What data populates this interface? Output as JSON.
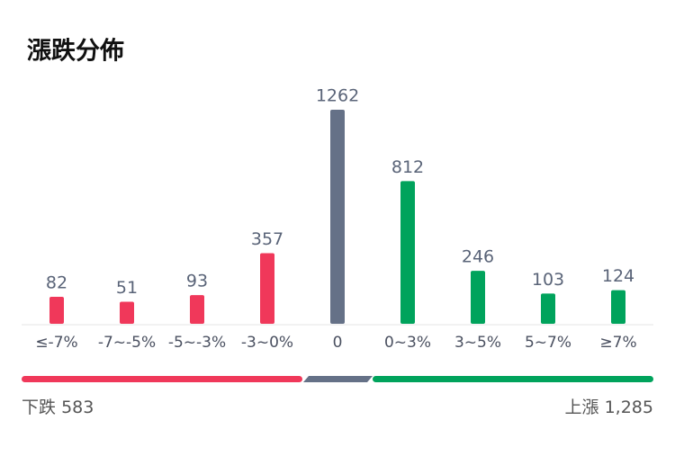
{
  "chart_data": {
    "type": "bar",
    "title": "漲跌分佈",
    "categories": [
      "≤-7%",
      "-7~-5%",
      "-5~-3%",
      "-3~0%",
      "0",
      "0~3%",
      "3~5%",
      "5~7%",
      "≥7%"
    ],
    "values": [
      82,
      51,
      93,
      357,
      1262,
      812,
      246,
      103,
      124
    ],
    "colors": [
      "#f0385a",
      "#f0385a",
      "#f0385a",
      "#f0385a",
      "#657187",
      "#00a35c",
      "#00a35c",
      "#00a35c",
      "#00a35c"
    ],
    "ylim": [
      -88,
      1262
    ],
    "totals": [
      {
        "label": "下跌",
        "value": 583,
        "value_label": "583"
      },
      {
        "label": "上漲",
        "value": 1285,
        "value_label": "1,285"
      }
    ]
  }
}
